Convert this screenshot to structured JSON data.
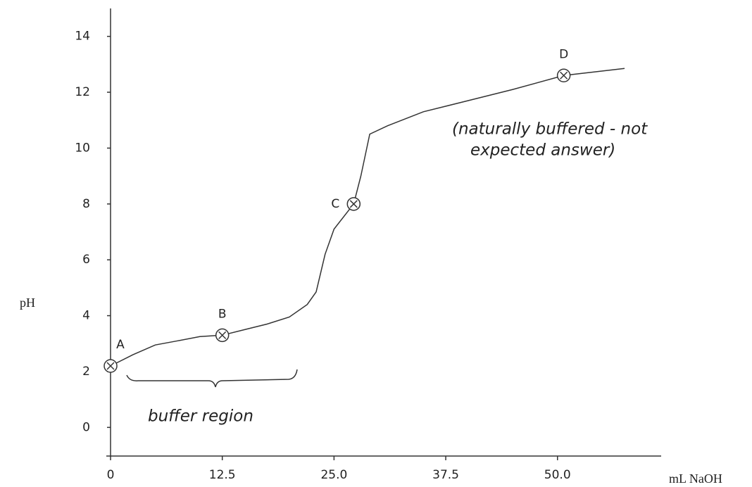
{
  "chart_data": {
    "type": "line",
    "x_label": "mL NaOH",
    "y_label": "pH",
    "x": [
      0,
      2.5,
      5,
      7.5,
      10,
      12.5,
      15,
      17.5,
      20,
      22,
      23,
      24,
      25,
      27.2,
      28,
      29,
      31,
      35,
      40,
      45,
      50.7,
      57.5
    ],
    "values": [
      2.2,
      2.6,
      2.95,
      3.1,
      3.25,
      3.3,
      3.5,
      3.7,
      3.95,
      4.4,
      4.85,
      6.2,
      7.1,
      8.0,
      9.0,
      10.5,
      10.8,
      11.3,
      11.7,
      12.1,
      12.6,
      12.85
    ],
    "color": "#333333",
    "points": {
      "labels": [
        "A",
        "B",
        "C",
        "D"
      ],
      "x": [
        0,
        12.5,
        27.2,
        50.7
      ],
      "values": [
        2.2,
        3.3,
        8.0,
        12.6
      ]
    },
    "annotations": [
      "(naturally buffered - not",
      "expected answer)",
      "buffer region"
    ],
    "xlim": [
      0,
      61.6
    ],
    "ylim": [
      -1,
      15
    ],
    "xticks": [
      {
        "value": 0,
        "label": "0"
      },
      12.5,
      {
        "value": 25,
        "label": "25.0"
      },
      37.5,
      {
        "value": 50,
        "label": "50.0"
      }
    ],
    "yticks": [
      0,
      2,
      4,
      6,
      8,
      10,
      12,
      14
    ]
  }
}
